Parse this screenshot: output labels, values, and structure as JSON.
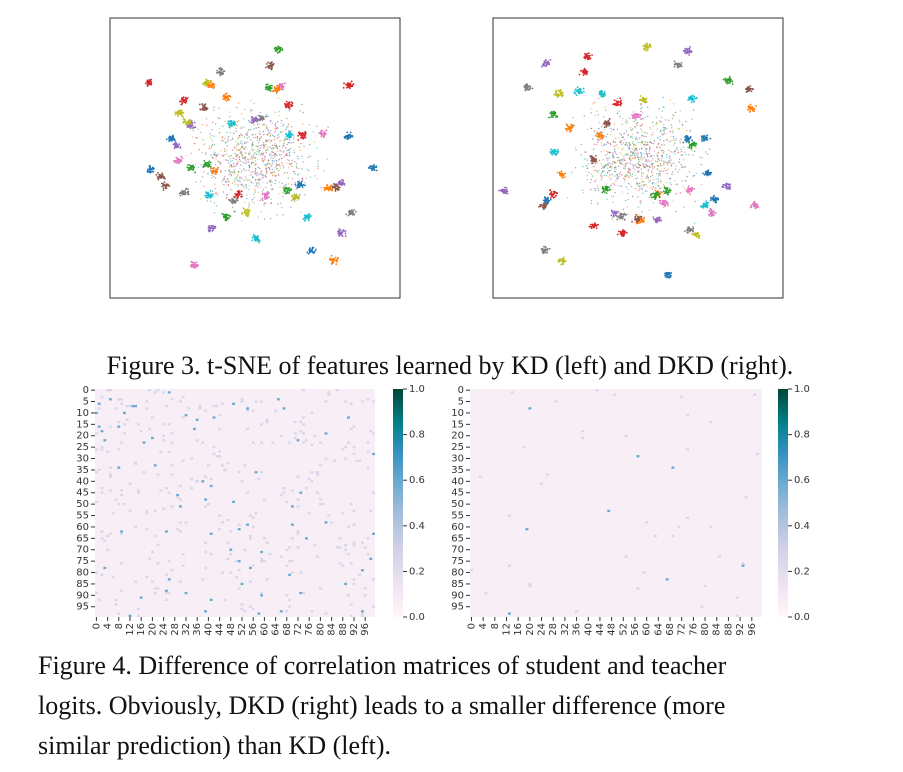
{
  "figure3": {
    "caption": "Figure 3. t-SNE of features learned by KD (left) and DKD (right)."
  },
  "figure4": {
    "caption": [
      "Figure 4. Difference of correlation matrices of student and teacher",
      "logits. Obviously, DKD (right) leads to a smaller difference (more",
      "similar prediction) than KD (left)."
    ],
    "heatmaps": [
      {
        "yticks": [
          0,
          5,
          10,
          15,
          20,
          25,
          30,
          35,
          40,
          45,
          50,
          55,
          60,
          65,
          70,
          75,
          80,
          85,
          90,
          95
        ],
        "xticks": [
          0,
          4,
          8,
          12,
          16,
          20,
          24,
          28,
          32,
          36,
          40,
          44,
          48,
          52,
          56,
          60,
          64,
          68,
          72,
          76,
          80,
          84,
          88,
          92,
          96
        ],
        "colorbar_ticks": [
          {
            "value": 0,
            "label": "0.0"
          },
          {
            "value": 0.2,
            "label": "0.2"
          },
          {
            "value": 0.4,
            "label": "0.4"
          },
          {
            "value": 0.6,
            "label": "0.6"
          },
          {
            "value": 0.8,
            "label": "0.8"
          },
          {
            "value": 1,
            "label": "1.0"
          }
        ]
      },
      {
        "yticks": [
          0,
          5,
          10,
          15,
          20,
          25,
          30,
          35,
          40,
          45,
          50,
          55,
          60,
          65,
          70,
          75,
          80,
          85,
          90,
          95
        ],
        "xticks": [
          0,
          4,
          8,
          12,
          16,
          20,
          24,
          28,
          32,
          36,
          40,
          44,
          48,
          52,
          56,
          60,
          64,
          68,
          72,
          76,
          80,
          84,
          88,
          92,
          96
        ],
        "colorbar_ticks": [
          {
            "value": 0,
            "label": "0.0"
          },
          {
            "value": 0.2,
            "label": "0.2"
          },
          {
            "value": 0.4,
            "label": "0.4"
          },
          {
            "value": 0.6,
            "label": "0.6"
          },
          {
            "value": 0.8,
            "label": "0.8"
          },
          {
            "value": 1,
            "label": "1.0"
          }
        ]
      }
    ]
  }
}
